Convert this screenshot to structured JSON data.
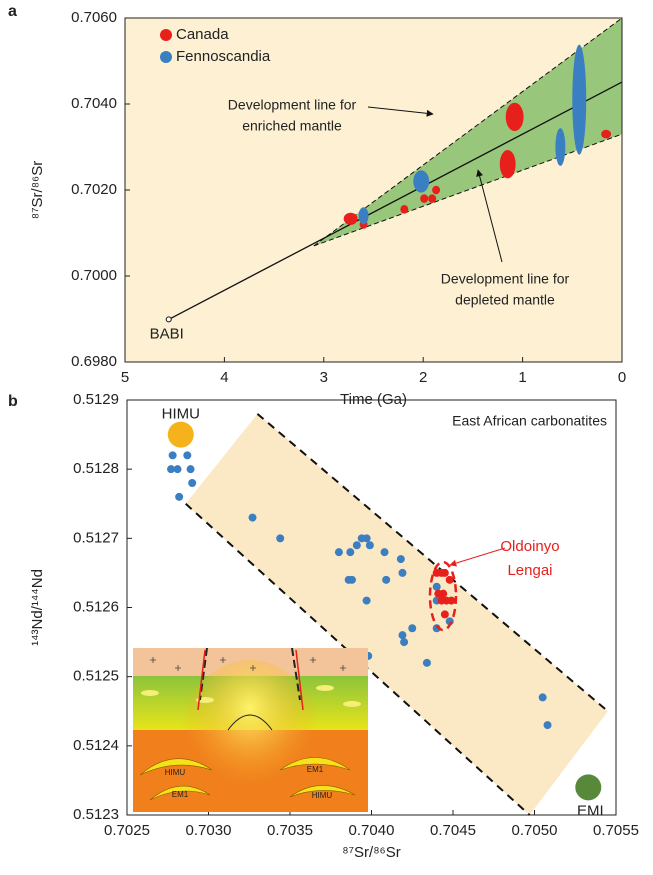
{
  "chart_data": [
    {
      "type": "scatter",
      "panel_label": "a",
      "xlabel": "Time (Ga)",
      "ylabel": "⁸⁷Sr/⁸⁶Sr",
      "xlim": [
        5,
        0
      ],
      "ylim": [
        0.698,
        0.706
      ],
      "xticks": [
        5,
        4,
        3,
        2,
        1,
        0
      ],
      "yticks": [
        {
          "value": 0.698,
          "label": "0.6980"
        },
        {
          "value": 0.7,
          "label": "0.7000"
        },
        {
          "value": 0.702,
          "label": "0.7020"
        },
        {
          "value": 0.704,
          "label": "0.7040"
        },
        {
          "value": 0.706,
          "label": "0.7060"
        }
      ],
      "legend": "upper left",
      "background": "#fdf0d3",
      "series": [
        {
          "name": "Canada",
          "color": "#e8201c",
          "x": [
            2.73,
            2.6,
            2.19,
            1.99,
            1.91,
            1.87,
            1.15,
            1.08,
            0.16
          ],
          "y": [
            0.70133,
            0.7012,
            0.70155,
            0.7018,
            0.7018,
            0.702,
            0.7026,
            0.7037,
            0.7033
          ],
          "x_err": [
            0.07,
            0.04,
            0.04,
            0.04,
            0.04,
            0.04,
            0.08,
            0.09,
            0.05
          ],
          "y_err": [
            0.00014,
            0.0001,
            0.0001,
            0.0001,
            0.0001,
            0.0001,
            0.00033,
            0.00033,
            0.0001
          ]
        },
        {
          "name": "Fennoscandia",
          "color": "#3a7fc1",
          "x": [
            2.6,
            2.02,
            0.62,
            0.43
          ],
          "y": [
            0.7014,
            0.7022,
            0.703,
            0.7041
          ],
          "x_err": [
            0.05,
            0.08,
            0.05,
            0.07
          ],
          "y_err": [
            0.0002,
            0.00026,
            0.00044,
            0.00128
          ]
        }
      ],
      "envelope": {
        "x": [
          3.1,
          0,
          0
        ],
        "y": [
          0.7007,
          0.706,
          0.7033
        ],
        "color": "#98c77b"
      },
      "reference_point": {
        "label": "BABI",
        "x": 4.56,
        "y": 0.69899
      },
      "line": {
        "x": [
          4.56,
          0
        ],
        "y": [
          0.69899,
          0.70451
        ]
      },
      "annotations": [
        [
          "Development line for",
          "enriched mantle"
        ],
        [
          "Development line for",
          "depleted mantle"
        ]
      ]
    },
    {
      "type": "scatter",
      "panel_label": "b",
      "title": "East African carbonatites",
      "xlabel": "⁸⁷Sr/⁸⁶Sr",
      "ylabel": "¹⁴³Nd/¹⁴⁴Nd",
      "xlim": [
        0.7025,
        0.7055
      ],
      "ylim": [
        0.5123,
        0.5129
      ],
      "xticks": [
        {
          "value": 0.7025,
          "label": "0.7025"
        },
        {
          "value": 0.703,
          "label": "0.7030"
        },
        {
          "value": 0.7035,
          "label": "0.7035"
        },
        {
          "value": 0.704,
          "label": "0.7040"
        },
        {
          "value": 0.7045,
          "label": "0.7045"
        },
        {
          "value": 0.705,
          "label": "0.7050"
        },
        {
          "value": 0.7055,
          "label": "0.7055"
        }
      ],
      "yticks": [
        {
          "value": 0.5123,
          "label": "0.5123"
        },
        {
          "value": 0.5124,
          "label": "0.5124"
        },
        {
          "value": 0.5125,
          "label": "0.5125"
        },
        {
          "value": 0.5126,
          "label": "0.5126"
        },
        {
          "value": 0.5127,
          "label": "0.5127"
        },
        {
          "value": 0.5128,
          "label": "0.5128"
        },
        {
          "value": 0.5129,
          "label": "0.5129"
        }
      ],
      "series": [
        {
          "color": "#3a7fc1",
          "x": [
            0.70277,
            0.70278,
            0.70281,
            0.70282,
            0.70287,
            0.70289,
            0.7029,
            0.70327,
            0.70344,
            0.7038,
            0.70386,
            0.70388,
            0.70387,
            0.70391,
            0.70394,
            0.70397,
            0.70399,
            0.70397,
            0.70408,
            0.70409,
            0.70418,
            0.70419,
            0.70419,
            0.7042,
            0.70425,
            0.70398,
            0.70434,
            0.7044,
            0.7044,
            0.7044,
            0.70448,
            0.70505,
            0.70508
          ],
          "y": [
            0.5128,
            0.51282,
            0.5128,
            0.51276,
            0.51282,
            0.5128,
            0.51278,
            0.51273,
            0.5127,
            0.51268,
            0.51264,
            0.51264,
            0.51268,
            0.51269,
            0.5127,
            0.5127,
            0.51269,
            0.51261,
            0.51268,
            0.51264,
            0.51267,
            0.51265,
            0.51256,
            0.51255,
            0.51257,
            0.51253,
            0.51252,
            0.51263,
            0.51261,
            0.51257,
            0.51258,
            0.51247,
            0.51243
          ]
        },
        {
          "name": [
            "Oldoinyo",
            "Lengai"
          ],
          "color": "#e8201c",
          "x": [
            0.7044,
            0.70443,
            0.70445,
            0.70448,
            0.70444,
            0.70446,
            0.70443,
            0.70445,
            0.70449,
            0.70441
          ],
          "y": [
            0.51265,
            0.51265,
            0.51265,
            0.51264,
            0.51262,
            0.51261,
            0.51261,
            0.51259,
            0.51261,
            0.51262
          ]
        }
      ],
      "band": {
        "upper": {
          "x": [
            0.7033,
            0.70545
          ],
          "y": [
            0.51288,
            0.51245
          ]
        },
        "lower": {
          "x": [
            0.70286,
            0.70497
          ],
          "y": [
            0.51275,
            0.5123
          ]
        },
        "color": "#fbe8c4"
      },
      "endmembers": [
        {
          "label": "HIMU",
          "x": 0.70283,
          "y": 0.51285,
          "color": "#f6b21a"
        },
        {
          "label": "EMI",
          "x": 0.70533,
          "y": 0.51234,
          "color": "#58893a"
        }
      ],
      "inset": {
        "labels": [
          "HIMU",
          "EM1",
          "EM1",
          "HIMU"
        ]
      }
    }
  ]
}
